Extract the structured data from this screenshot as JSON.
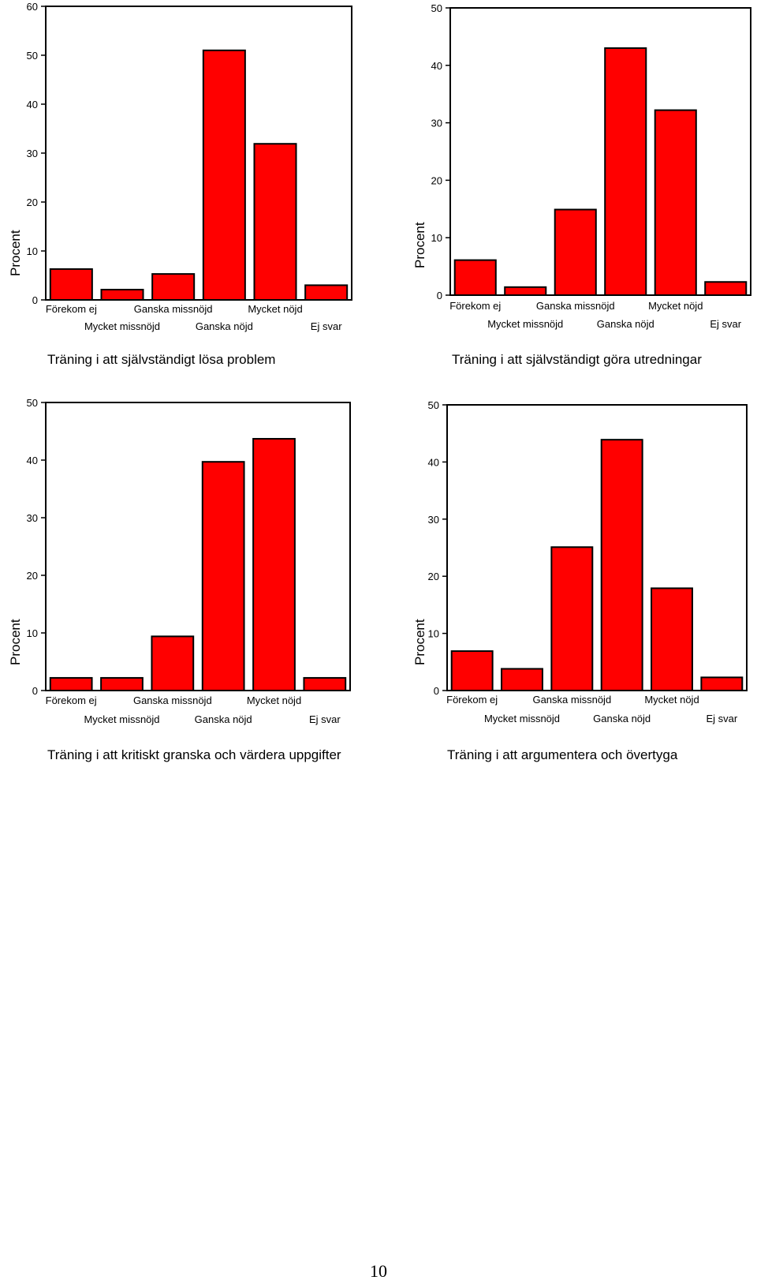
{
  "chart_data": [
    {
      "type": "bar",
      "title": "Träning i att självständigt lösa problem",
      "ylabel": "Procent",
      "categories": [
        "Förekom ej",
        "Mycket missnöjd",
        "Ganska missnöjd",
        "Ganska nöjd",
        "Mycket nöjd",
        "Ej svar"
      ],
      "values": [
        6.3,
        2.1,
        5.3,
        51.0,
        31.9,
        3.0
      ],
      "ylim": [
        0,
        60
      ],
      "yticks": [
        0,
        10,
        20,
        30,
        40,
        50,
        60
      ],
      "grid": false,
      "bar_color": "#ff0000"
    },
    {
      "type": "bar",
      "title": "Träning i att självständigt göra utredningar",
      "ylabel": "Procent",
      "categories": [
        "Förekom ej",
        "Mycket missnöjd",
        "Ganska missnöjd",
        "Ganska nöjd",
        "Mycket nöjd",
        "Ej svar"
      ],
      "values": [
        6.1,
        1.4,
        14.9,
        43.0,
        32.2,
        2.3
      ],
      "ylim": [
        0,
        50
      ],
      "yticks": [
        0,
        10,
        20,
        30,
        40,
        50
      ],
      "grid": false,
      "bar_color": "#ff0000"
    },
    {
      "type": "bar",
      "title": "Träning i att kritiskt granska och värdera uppgifter",
      "ylabel": "Procent",
      "categories": [
        "Förekom ej",
        "Mycket missnöjd",
        "Ganska missnöjd",
        "Ganska nöjd",
        "Mycket nöjd",
        "Ej svar"
      ],
      "values": [
        2.2,
        2.2,
        9.4,
        39.7,
        43.7,
        2.2
      ],
      "ylim": [
        0,
        50
      ],
      "yticks": [
        0,
        10,
        20,
        30,
        40,
        50
      ],
      "grid": false,
      "bar_color": "#ff0000"
    },
    {
      "type": "bar",
      "title": "Träning i att argumentera och övertyga",
      "ylabel": "Procent",
      "categories": [
        "Förekom ej",
        "Mycket missnöjd",
        "Ganska missnöjd",
        "Ganska nöjd",
        "Mycket nöjd",
        "Ej svar"
      ],
      "values": [
        6.9,
        3.8,
        25.1,
        43.9,
        17.9,
        2.3
      ],
      "ylim": [
        0,
        50
      ],
      "yticks": [
        0,
        10,
        20,
        30,
        40,
        50
      ],
      "grid": false,
      "bar_color": "#ff0000"
    }
  ],
  "page": {
    "number": "10"
  }
}
